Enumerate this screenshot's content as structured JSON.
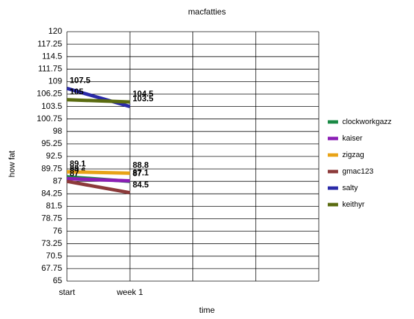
{
  "chart_data": {
    "type": "line",
    "title": "macfatties",
    "x_label": "time",
    "y_label": "how fat",
    "categories": [
      "start",
      "week 1",
      null,
      null,
      null
    ],
    "series": [
      {
        "name": "clockworkgazz",
        "color": "#1a8a45",
        "values": [
          88,
          87,
          null,
          null,
          null
        ]
      },
      {
        "name": "kaiser",
        "color": "#8b1fb5",
        "values": [
          87.6,
          87.1,
          null,
          null,
          null
        ]
      },
      {
        "name": "zigzag",
        "color": "#e8a317",
        "values": [
          89.1,
          88.8,
          null,
          null,
          null
        ]
      },
      {
        "name": "gmac123",
        "color": "#8c3a3a",
        "values": [
          87,
          84.5,
          null,
          null,
          null
        ]
      },
      {
        "name": "salty",
        "color": "#2a2aa8",
        "values": [
          107.5,
          103.5,
          null,
          null,
          null
        ]
      },
      {
        "name": "keithyr",
        "color": "#5a6b10",
        "values": [
          105,
          104.5,
          null,
          null,
          null
        ]
      }
    ],
    "ylim": [
      65,
      120
    ],
    "yticks": [
      65,
      67.75,
      70.5,
      73.25,
      76,
      78.75,
      81.5,
      84.25,
      87,
      89.75,
      92.5,
      95.25,
      98,
      100.75,
      103.5,
      106.25,
      109,
      111.75,
      114.5,
      117.25,
      120
    ],
    "grid": true,
    "legend": "right"
  }
}
